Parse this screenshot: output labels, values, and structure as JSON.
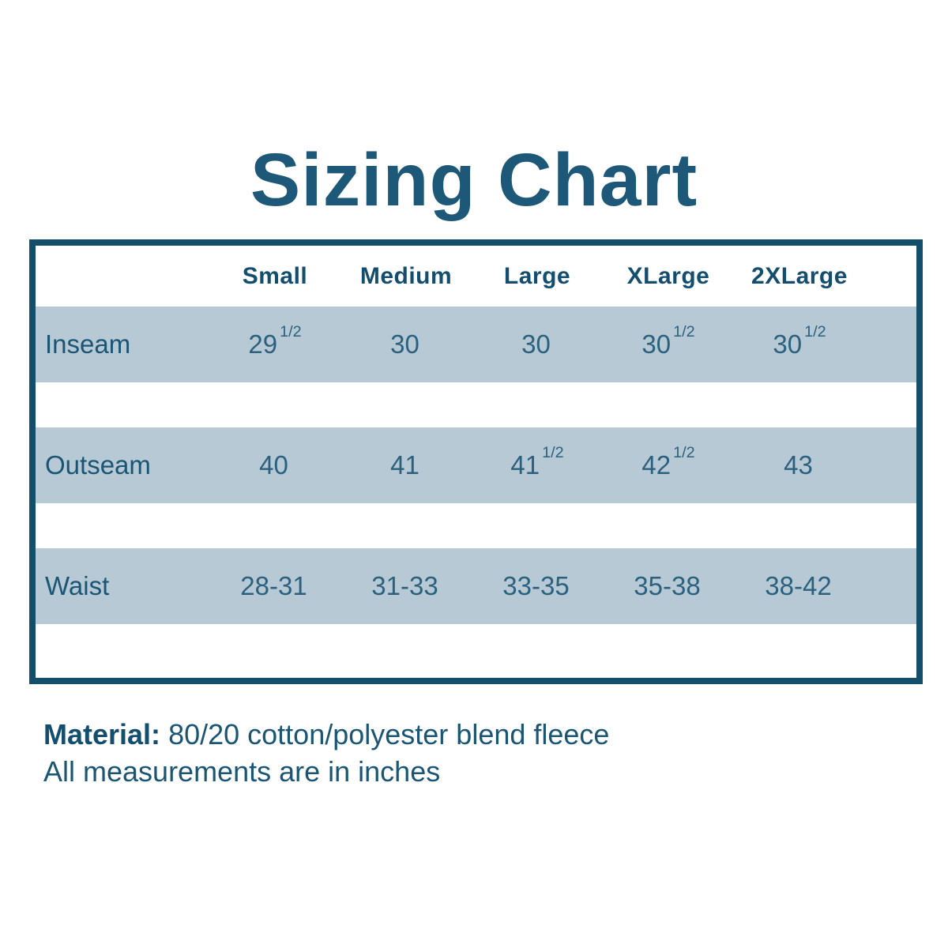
{
  "title": "Sizing Chart",
  "colors": {
    "accent_dark": "#134e6e",
    "text_teal": "#1b5574",
    "cell_text": "#2b617e",
    "row_band": "#b6c9d4",
    "background": "#ffffff"
  },
  "table": {
    "columns": [
      "Small",
      "Medium",
      "Large",
      "XLarge",
      "2XLarge"
    ],
    "rows": [
      {
        "label": "Inseam",
        "values": [
          {
            "base": "29",
            "frac": "1/2"
          },
          {
            "base": "30"
          },
          {
            "base": "30"
          },
          {
            "base": "30",
            "frac": "1/2"
          },
          {
            "base": "30",
            "frac": "1/2"
          }
        ]
      },
      {
        "label": "Outseam",
        "values": [
          {
            "base": "40"
          },
          {
            "base": "41"
          },
          {
            "base": "41",
            "frac": "1/2"
          },
          {
            "base": "42",
            "frac": "1/2"
          },
          {
            "base": "43"
          }
        ]
      },
      {
        "label": "Waist",
        "values": [
          {
            "base": "28-31"
          },
          {
            "base": "31-33"
          },
          {
            "base": "33-35"
          },
          {
            "base": "35-38"
          },
          {
            "base": "38-42"
          }
        ]
      }
    ]
  },
  "footer": {
    "material_label": "Material:",
    "material_value": "80/20 cotton/polyester blend fleece",
    "note": "All measurements are in inches"
  },
  "chart_data": {
    "type": "table",
    "title": "Sizing Chart",
    "columns": [
      "Small",
      "Medium",
      "Large",
      "XLarge",
      "2XLarge"
    ],
    "rows": [
      {
        "label": "Inseam",
        "values": [
          "29 1/2",
          "30",
          "30",
          "30 1/2",
          "30 1/2"
        ]
      },
      {
        "label": "Outseam",
        "values": [
          "40",
          "41",
          "41 1/2",
          "42 1/2",
          "43"
        ]
      },
      {
        "label": "Waist",
        "values": [
          "28-31",
          "31-33",
          "33-35",
          "35-38",
          "38-42"
        ]
      }
    ],
    "notes": [
      "Material: 80/20 cotton/polyester blend fleece",
      "All measurements are in inches"
    ],
    "units": "inches"
  }
}
